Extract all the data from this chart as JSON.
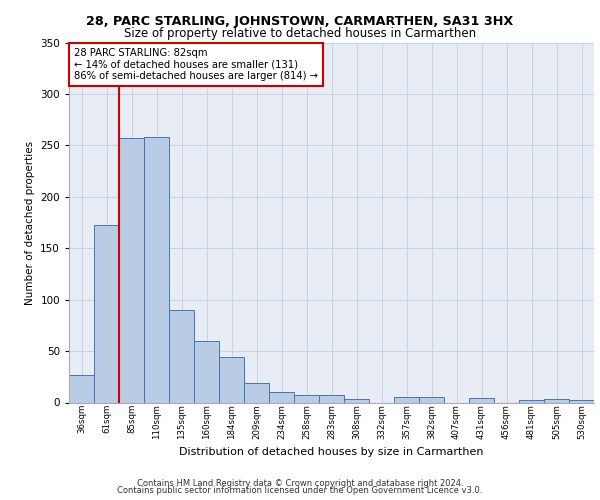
{
  "title1": "28, PARC STARLING, JOHNSTOWN, CARMARTHEN, SA31 3HX",
  "title2": "Size of property relative to detached houses in Carmarthen",
  "xlabel": "Distribution of detached houses by size in Carmarthen",
  "ylabel": "Number of detached properties",
  "categories": [
    "36sqm",
    "61sqm",
    "85sqm",
    "110sqm",
    "135sqm",
    "160sqm",
    "184sqm",
    "209sqm",
    "234sqm",
    "258sqm",
    "283sqm",
    "308sqm",
    "332sqm",
    "357sqm",
    "382sqm",
    "407sqm",
    "431sqm",
    "456sqm",
    "481sqm",
    "505sqm",
    "530sqm"
  ],
  "values": [
    27,
    173,
    257,
    258,
    90,
    60,
    44,
    19,
    10,
    7,
    7,
    3,
    0,
    5,
    5,
    0,
    4,
    0,
    2,
    3,
    2
  ],
  "bar_color": "#b8cce4",
  "bar_edge_color": "#4472c4",
  "grid_color": "#c8d4e4",
  "bg_color": "#e8edf5",
  "property_line_x": 1.5,
  "property_label": "28 PARC STARLING: 82sqm",
  "annotation_line1": "← 14% of detached houses are smaller (131)",
  "annotation_line2": "86% of semi-detached houses are larger (814) →",
  "vline_color": "#cc0000",
  "annotation_box_edge": "#cc0000",
  "ylim": [
    0,
    350
  ],
  "yticks": [
    0,
    50,
    100,
    150,
    200,
    250,
    300,
    350
  ],
  "footer1": "Contains HM Land Registry data © Crown copyright and database right 2024.",
  "footer2": "Contains public sector information licensed under the Open Government Licence v3.0."
}
